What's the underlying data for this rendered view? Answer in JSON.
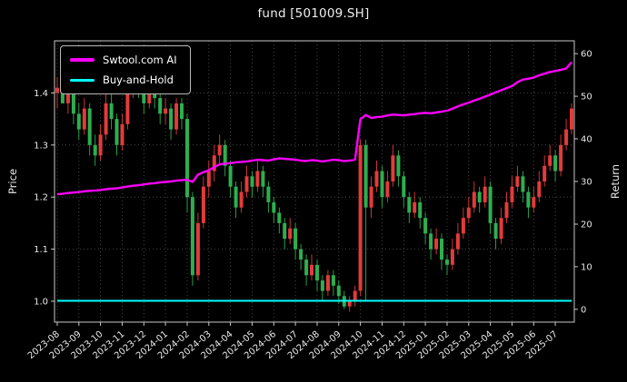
{
  "chart_data": {
    "type": "candlestick+line",
    "title": "fund [501009.SH]",
    "ylabel_left": "Price",
    "ylabel_right": "Return",
    "legend_position": "upper-left",
    "background": "#000000",
    "text_color": "#efefef",
    "grid": {
      "color": "#565656",
      "style": "dotted",
      "on": true
    },
    "price_ticks": [
      1.0,
      1.1,
      1.2,
      1.3,
      1.4
    ],
    "return_ticks": [
      0,
      10,
      20,
      30,
      40,
      50,
      60
    ],
    "price_ylim": [
      0.96,
      1.5
    ],
    "return_ylim": [
      -3,
      63
    ],
    "x_tick_labels": [
      "2023-08",
      "2023-09",
      "2023-10",
      "2023-11",
      "2023-12",
      "2024-01",
      "2024-02",
      "2024-03",
      "2024-04",
      "2024-05",
      "2024-06",
      "2024-07",
      "2024-08",
      "2024-09",
      "2024-10",
      "2024-11",
      "2024-12",
      "2025-01",
      "2025-02",
      "2025-03",
      "2025-04",
      "2025-05",
      "2025-06",
      "2025-07"
    ],
    "candles": {
      "colors": {
        "up": "#e23b3b",
        "down": "#2eae4f"
      },
      "ohlc": [
        [
          1.4,
          1.43,
          1.37,
          1.41
        ],
        [
          1.41,
          1.44,
          1.38,
          1.38
        ],
        [
          1.38,
          1.43,
          1.36,
          1.42
        ],
        [
          1.42,
          1.43,
          1.34,
          1.36
        ],
        [
          1.36,
          1.38,
          1.31,
          1.33
        ],
        [
          1.33,
          1.39,
          1.32,
          1.37
        ],
        [
          1.37,
          1.38,
          1.28,
          1.3
        ],
        [
          1.3,
          1.32,
          1.26,
          1.28
        ],
        [
          1.28,
          1.34,
          1.27,
          1.32
        ],
        [
          1.32,
          1.4,
          1.31,
          1.38
        ],
        [
          1.38,
          1.4,
          1.33,
          1.35
        ],
        [
          1.35,
          1.36,
          1.28,
          1.3
        ],
        [
          1.3,
          1.36,
          1.29,
          1.34
        ],
        [
          1.34,
          1.42,
          1.33,
          1.4
        ],
        [
          1.4,
          1.46,
          1.39,
          1.44
        ],
        [
          1.44,
          1.45,
          1.39,
          1.41
        ],
        [
          1.41,
          1.42,
          1.36,
          1.38
        ],
        [
          1.38,
          1.44,
          1.37,
          1.42
        ],
        [
          1.42,
          1.43,
          1.37,
          1.39
        ],
        [
          1.39,
          1.4,
          1.34,
          1.36
        ],
        [
          1.36,
          1.39,
          1.34,
          1.37
        ],
        [
          1.37,
          1.38,
          1.31,
          1.33
        ],
        [
          1.33,
          1.39,
          1.32,
          1.38
        ],
        [
          1.38,
          1.39,
          1.33,
          1.35
        ],
        [
          1.35,
          1.36,
          1.17,
          1.2
        ],
        [
          1.2,
          1.21,
          1.03,
          1.05
        ],
        [
          1.05,
          1.17,
          1.04,
          1.15
        ],
        [
          1.15,
          1.24,
          1.14,
          1.22
        ],
        [
          1.22,
          1.27,
          1.2,
          1.25
        ],
        [
          1.25,
          1.3,
          1.23,
          1.28
        ],
        [
          1.28,
          1.32,
          1.26,
          1.3
        ],
        [
          1.3,
          1.31,
          1.24,
          1.26
        ],
        [
          1.26,
          1.27,
          1.2,
          1.22
        ],
        [
          1.22,
          1.23,
          1.16,
          1.18
        ],
        [
          1.18,
          1.23,
          1.17,
          1.21
        ],
        [
          1.21,
          1.26,
          1.2,
          1.24
        ],
        [
          1.24,
          1.25,
          1.2,
          1.22
        ],
        [
          1.22,
          1.27,
          1.21,
          1.25
        ],
        [
          1.25,
          1.26,
          1.2,
          1.22
        ],
        [
          1.22,
          1.23,
          1.17,
          1.19
        ],
        [
          1.19,
          1.2,
          1.15,
          1.17
        ],
        [
          1.17,
          1.18,
          1.13,
          1.15
        ],
        [
          1.15,
          1.16,
          1.1,
          1.12
        ],
        [
          1.12,
          1.16,
          1.11,
          1.14
        ],
        [
          1.14,
          1.15,
          1.08,
          1.1
        ],
        [
          1.1,
          1.11,
          1.06,
          1.08
        ],
        [
          1.08,
          1.09,
          1.03,
          1.05
        ],
        [
          1.05,
          1.09,
          1.04,
          1.07
        ],
        [
          1.07,
          1.08,
          1.02,
          1.04
        ],
        [
          1.04,
          1.05,
          1.0,
          1.02
        ],
        [
          1.02,
          1.06,
          1.01,
          1.05
        ],
        [
          1.05,
          1.06,
          1.01,
          1.03
        ],
        [
          1.03,
          1.04,
          0.995,
          1.01
        ],
        [
          1.01,
          1.02,
          0.985,
          0.99
        ],
        [
          0.99,
          1.01,
          0.98,
          1.0
        ],
        [
          1.0,
          1.03,
          0.99,
          1.02
        ],
        [
          1.02,
          1.31,
          1.01,
          1.3
        ],
        [
          1.3,
          1.31,
          1.0,
          1.18
        ],
        [
          1.18,
          1.24,
          1.16,
          1.22
        ],
        [
          1.22,
          1.27,
          1.21,
          1.25
        ],
        [
          1.25,
          1.26,
          1.18,
          1.2
        ],
        [
          1.2,
          1.25,
          1.19,
          1.23
        ],
        [
          1.23,
          1.3,
          1.22,
          1.28
        ],
        [
          1.28,
          1.29,
          1.22,
          1.24
        ],
        [
          1.24,
          1.25,
          1.18,
          1.2
        ],
        [
          1.2,
          1.21,
          1.15,
          1.17
        ],
        [
          1.17,
          1.21,
          1.16,
          1.19
        ],
        [
          1.19,
          1.2,
          1.14,
          1.16
        ],
        [
          1.16,
          1.17,
          1.11,
          1.13
        ],
        [
          1.13,
          1.14,
          1.08,
          1.1
        ],
        [
          1.1,
          1.14,
          1.09,
          1.12
        ],
        [
          1.12,
          1.13,
          1.06,
          1.08
        ],
        [
          1.08,
          1.09,
          1.05,
          1.07
        ],
        [
          1.07,
          1.12,
          1.06,
          1.1
        ],
        [
          1.1,
          1.15,
          1.09,
          1.13
        ],
        [
          1.13,
          1.18,
          1.12,
          1.16
        ],
        [
          1.16,
          1.2,
          1.15,
          1.18
        ],
        [
          1.18,
          1.23,
          1.17,
          1.21
        ],
        [
          1.21,
          1.22,
          1.17,
          1.19
        ],
        [
          1.19,
          1.24,
          1.18,
          1.22
        ],
        [
          1.22,
          1.23,
          1.13,
          1.15
        ],
        [
          1.15,
          1.16,
          1.1,
          1.12
        ],
        [
          1.12,
          1.18,
          1.11,
          1.16
        ],
        [
          1.16,
          1.21,
          1.15,
          1.19
        ],
        [
          1.19,
          1.24,
          1.18,
          1.22
        ],
        [
          1.22,
          1.26,
          1.21,
          1.24
        ],
        [
          1.24,
          1.25,
          1.19,
          1.21
        ],
        [
          1.21,
          1.22,
          1.16,
          1.18
        ],
        [
          1.18,
          1.22,
          1.17,
          1.2
        ],
        [
          1.2,
          1.25,
          1.19,
          1.23
        ],
        [
          1.23,
          1.28,
          1.22,
          1.26
        ],
        [
          1.26,
          1.3,
          1.25,
          1.28
        ],
        [
          1.28,
          1.29,
          1.23,
          1.25
        ],
        [
          1.25,
          1.32,
          1.24,
          1.3
        ],
        [
          1.3,
          1.35,
          1.29,
          1.33
        ],
        [
          1.33,
          1.38,
          1.32,
          1.37
        ]
      ]
    },
    "series": [
      {
        "name": "Swtool.com AI",
        "color": "#ff00ff",
        "axis": "return",
        "values": [
          27.0,
          27.1,
          27.3,
          27.4,
          27.5,
          27.7,
          27.8,
          27.9,
          28.0,
          28.2,
          28.3,
          28.4,
          28.6,
          28.8,
          29.0,
          29.1,
          29.3,
          29.5,
          29.6,
          29.8,
          29.9,
          30.0,
          30.2,
          30.3,
          30.4,
          29.9,
          31.6,
          32.2,
          32.6,
          33.4,
          34.0,
          34.2,
          34.3,
          34.5,
          34.6,
          34.7,
          34.9,
          35.1,
          35.0,
          34.9,
          35.2,
          35.4,
          35.3,
          35.2,
          35.1,
          34.9,
          34.8,
          35.0,
          34.9,
          34.7,
          34.9,
          35.1,
          35.0,
          34.8,
          34.9,
          35.1,
          44.6,
          45.6,
          44.9,
          45.1,
          45.2,
          45.5,
          45.7,
          45.6,
          45.5,
          45.7,
          45.8,
          46.0,
          46.1,
          46.0,
          46.2,
          46.4,
          46.6,
          47.1,
          47.6,
          48.1,
          48.5,
          49.0,
          49.4,
          49.9,
          50.4,
          50.9,
          51.4,
          51.9,
          52.4,
          53.3,
          53.9,
          54.1,
          54.4,
          54.9,
          55.3,
          55.7,
          55.9,
          56.2,
          56.5,
          58.0
        ]
      },
      {
        "name": "Buy-and-Hold",
        "color": "#00ffff",
        "axis": "return",
        "constant_value": 2.0
      }
    ]
  }
}
